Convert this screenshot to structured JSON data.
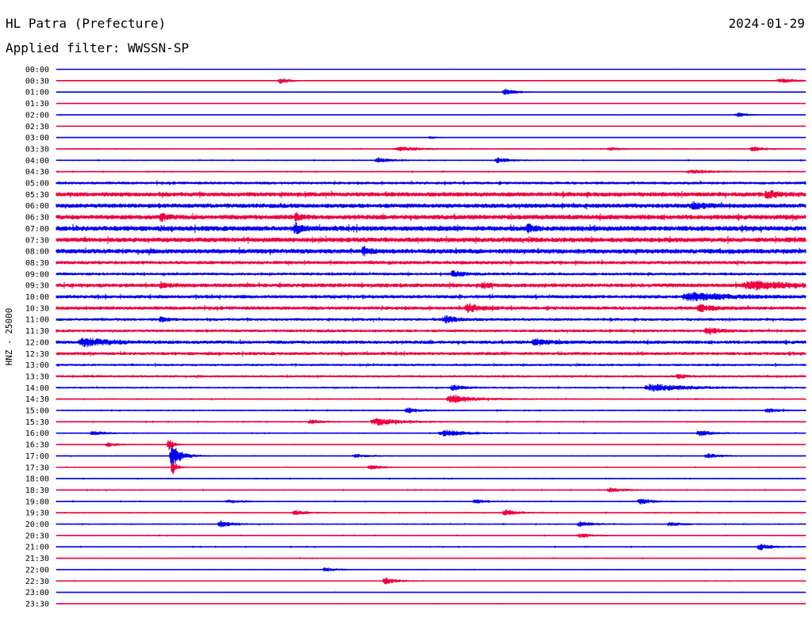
{
  "header": {
    "station": "HL Patra (Prefecture)",
    "date": "2024-01-29",
    "filter_label": "Applied filter:",
    "filter_value": "WWSSN-SP"
  },
  "colors": {
    "trace_a": "#0000ee",
    "trace_b": "#ee0040",
    "text": "#000000",
    "background": "#ffffff"
  },
  "chart_data": {
    "type": "line",
    "title": "",
    "ylabel": "HNZ - 25000",
    "xlabel": "",
    "grid": false,
    "legend": "none",
    "trace_colors_alternate": [
      "#0000ee",
      "#ee0040"
    ],
    "rows": [
      {
        "label": "00:00",
        "noise": 0.4
      },
      {
        "label": "00:30",
        "noise": 0.5,
        "events": [
          [
            0.3,
            4.0,
            0.008
          ],
          [
            0.97,
            2.5,
            0.02
          ]
        ]
      },
      {
        "label": "01:00",
        "noise": 0.5,
        "events": [
          [
            0.6,
            4.0,
            0.01
          ]
        ]
      },
      {
        "label": "01:30",
        "noise": 0.3
      },
      {
        "label": "02:00",
        "noise": 0.4,
        "events": [
          [
            0.91,
            2.5,
            0.01
          ]
        ]
      },
      {
        "label": "02:30",
        "noise": 0.3
      },
      {
        "label": "03:00",
        "noise": 0.4,
        "events": [
          [
            0.5,
            1.5,
            0.008
          ]
        ]
      },
      {
        "label": "03:30",
        "noise": 0.7,
        "events": [
          [
            0.46,
            2.5,
            0.02
          ],
          [
            0.93,
            3.0,
            0.01
          ],
          [
            0.74,
            2.0,
            0.01
          ]
        ]
      },
      {
        "label": "04:00",
        "noise": 0.9,
        "events": [
          [
            0.43,
            3.0,
            0.01
          ],
          [
            0.59,
            3.0,
            0.01
          ]
        ]
      },
      {
        "label": "04:30",
        "noise": 0.9,
        "events": [
          [
            0.85,
            2.0,
            0.02
          ]
        ]
      },
      {
        "label": "05:00",
        "noise": 1.8
      },
      {
        "label": "05:30",
        "noise": 2.8,
        "events": [
          [
            0.95,
            3.5,
            0.01
          ]
        ]
      },
      {
        "label": "06:00",
        "noise": 2.8,
        "events": [
          [
            0.85,
            3.5,
            0.01
          ]
        ]
      },
      {
        "label": "06:30",
        "noise": 3.0,
        "events": [
          [
            0.14,
            5.0,
            0.004
          ],
          [
            0.32,
            4.5,
            0.004
          ]
        ]
      },
      {
        "label": "07:00",
        "noise": 3.2,
        "events": [
          [
            0.32,
            5.5,
            0.005
          ],
          [
            0.63,
            4.0,
            0.005
          ]
        ]
      },
      {
        "label": "07:30",
        "noise": 3.0
      },
      {
        "label": "08:00",
        "noise": 3.0,
        "events": [
          [
            0.41,
            4.5,
            0.005
          ]
        ]
      },
      {
        "label": "08:30",
        "noise": 2.2
      },
      {
        "label": "09:00",
        "noise": 1.8,
        "events": [
          [
            0.53,
            3.5,
            0.008
          ]
        ]
      },
      {
        "label": "09:30",
        "noise": 2.5,
        "events": [
          [
            0.93,
            4.5,
            0.03
          ],
          [
            0.14,
            3.0,
            0.005
          ],
          [
            0.57,
            3.0,
            0.005
          ]
        ]
      },
      {
        "label": "10:00",
        "noise": 2.2,
        "events": [
          [
            0.85,
            4.5,
            0.03
          ]
        ]
      },
      {
        "label": "10:30",
        "noise": 2.2,
        "events": [
          [
            0.55,
            4.5,
            0.01
          ],
          [
            0.86,
            4.0,
            0.01
          ]
        ]
      },
      {
        "label": "11:00",
        "noise": 1.8,
        "events": [
          [
            0.52,
            4.0,
            0.01
          ],
          [
            0.14,
            3.0,
            0.005
          ]
        ]
      },
      {
        "label": "11:30",
        "noise": 1.8,
        "events": [
          [
            0.87,
            3.5,
            0.01
          ]
        ]
      },
      {
        "label": "12:00",
        "noise": 2.2,
        "events": [
          [
            0.04,
            4.5,
            0.02
          ],
          [
            0.64,
            4.0,
            0.01
          ]
        ]
      },
      {
        "label": "12:30",
        "noise": 2.0
      },
      {
        "label": "13:00",
        "noise": 1.5
      },
      {
        "label": "13:30",
        "noise": 1.5,
        "events": [
          [
            0.83,
            3.0,
            0.005
          ]
        ]
      },
      {
        "label": "14:00",
        "noise": 1.2,
        "events": [
          [
            0.8,
            4.0,
            0.03
          ],
          [
            0.53,
            3.0,
            0.01
          ]
        ]
      },
      {
        "label": "14:30",
        "noise": 1.0,
        "events": [
          [
            0.53,
            4.5,
            0.02
          ]
        ]
      },
      {
        "label": "15:00",
        "noise": 1.0,
        "events": [
          [
            0.47,
            3.0,
            0.01
          ],
          [
            0.95,
            2.5,
            0.01
          ]
        ]
      },
      {
        "label": "15:30",
        "noise": 1.0,
        "events": [
          [
            0.43,
            4.0,
            0.02
          ],
          [
            0.34,
            2.5,
            0.01
          ]
        ]
      },
      {
        "label": "16:00",
        "noise": 0.9,
        "events": [
          [
            0.52,
            3.5,
            0.02
          ],
          [
            0.86,
            3.5,
            0.01
          ],
          [
            0.05,
            2.5,
            0.01
          ]
        ]
      },
      {
        "label": "16:30",
        "noise": 0.6,
        "events": [
          [
            0.15,
            8.0,
            0.004
          ],
          [
            0.07,
            2.5,
            0.01
          ]
        ]
      },
      {
        "label": "17:00",
        "noise": 0.8,
        "events": [
          [
            0.155,
            14.0,
            0.008
          ],
          [
            0.87,
            3.0,
            0.01
          ],
          [
            0.4,
            2.0,
            0.01
          ]
        ]
      },
      {
        "label": "17:30",
        "noise": 0.8,
        "events": [
          [
            0.155,
            9.0,
            0.004
          ],
          [
            0.42,
            2.5,
            0.01
          ]
        ]
      },
      {
        "label": "18:00",
        "noise": 0.8
      },
      {
        "label": "18:30",
        "noise": 0.9,
        "events": [
          [
            0.74,
            2.5,
            0.01
          ]
        ]
      },
      {
        "label": "19:00",
        "noise": 0.9,
        "events": [
          [
            0.78,
            3.5,
            0.01
          ],
          [
            0.56,
            2.5,
            0.01
          ],
          [
            0.23,
            2.0,
            0.01
          ]
        ]
      },
      {
        "label": "19:30",
        "noise": 0.9,
        "events": [
          [
            0.6,
            3.5,
            0.01
          ],
          [
            0.32,
            2.5,
            0.01
          ]
        ]
      },
      {
        "label": "20:00",
        "noise": 0.9,
        "events": [
          [
            0.22,
            3.5,
            0.01
          ],
          [
            0.7,
            3.0,
            0.01
          ],
          [
            0.82,
            2.5,
            0.01
          ]
        ]
      },
      {
        "label": "20:30",
        "noise": 0.8,
        "events": [
          [
            0.7,
            2.5,
            0.01
          ]
        ]
      },
      {
        "label": "21:00",
        "noise": 0.9,
        "events": [
          [
            0.94,
            4.0,
            0.01
          ]
        ]
      },
      {
        "label": "21:30",
        "noise": 0.7
      },
      {
        "label": "22:00",
        "noise": 0.6,
        "events": [
          [
            0.36,
            2.5,
            0.01
          ]
        ]
      },
      {
        "label": "22:30",
        "noise": 0.7,
        "events": [
          [
            0.44,
            4.0,
            0.01
          ]
        ]
      },
      {
        "label": "23:00",
        "noise": 0.6
      },
      {
        "label": "23:30",
        "noise": 0.4
      }
    ]
  }
}
